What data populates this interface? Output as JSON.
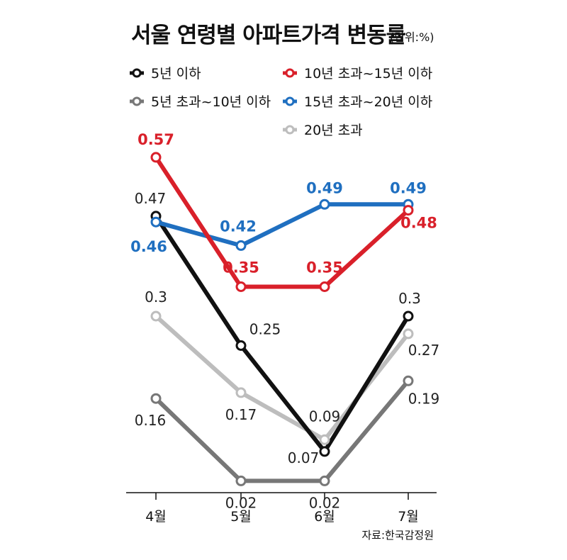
{
  "chart_data": {
    "type": "line",
    "title": "서울 연령별 아파트가격 변동률",
    "unit": "(단위:%)",
    "source": "자료:한국감정원",
    "categories": [
      "4월",
      "5월",
      "6월",
      "7월"
    ],
    "ylim": [
      0,
      0.6
    ],
    "grid": false,
    "legend_position": "top",
    "series": [
      {
        "name": "5년 이하",
        "color": "#111111",
        "values": [
          0.47,
          0.25,
          0.07,
          0.3
        ],
        "label_bold": false
      },
      {
        "name": "5년 초과~10년 이하",
        "color": "#777777",
        "values": [
          0.16,
          0.02,
          0.02,
          0.19
        ],
        "label_bold": false
      },
      {
        "name": "10년 초과~15년 이하",
        "color": "#d9202a",
        "values": [
          0.57,
          0.35,
          0.35,
          0.48
        ],
        "label_bold": true
      },
      {
        "name": "15년 초과~20년 이하",
        "color": "#1f6fc0",
        "values": [
          0.46,
          0.42,
          0.49,
          0.49
        ],
        "label_bold": true
      },
      {
        "name": "20년 초과",
        "color": "#bdbdbd",
        "values": [
          0.3,
          0.17,
          0.09,
          0.27
        ],
        "label_bold": false
      }
    ],
    "data_labels": [
      {
        "series": 0,
        "index": 0,
        "text": "0.47"
      },
      {
        "series": 0,
        "index": 1,
        "text": "0.25"
      },
      {
        "series": 0,
        "index": 2,
        "text": "0.07"
      },
      {
        "series": 0,
        "index": 3,
        "text": "0.3"
      },
      {
        "series": 1,
        "index": 0,
        "text": "0.16"
      },
      {
        "series": 1,
        "index": 1,
        "text": "0.02"
      },
      {
        "series": 1,
        "index": 2,
        "text": "0.02"
      },
      {
        "series": 1,
        "index": 3,
        "text": "0.19"
      },
      {
        "series": 2,
        "index": 0,
        "text": "0.57"
      },
      {
        "series": 2,
        "index": 1,
        "text": "0.35"
      },
      {
        "series": 2,
        "index": 2,
        "text": "0.35"
      },
      {
        "series": 2,
        "index": 3,
        "text": "0.48"
      },
      {
        "series": 3,
        "index": 0,
        "text": "0.46"
      },
      {
        "series": 3,
        "index": 1,
        "text": "0.42"
      },
      {
        "series": 3,
        "index": 2,
        "text": "0.49"
      },
      {
        "series": 3,
        "index": 3,
        "text": "0.49"
      },
      {
        "series": 4,
        "index": 0,
        "text": "0.3"
      },
      {
        "series": 4,
        "index": 1,
        "text": "0.17"
      },
      {
        "series": 4,
        "index": 2,
        "text": "0.09"
      },
      {
        "series": 4,
        "index": 3,
        "text": "0.27"
      }
    ]
  }
}
